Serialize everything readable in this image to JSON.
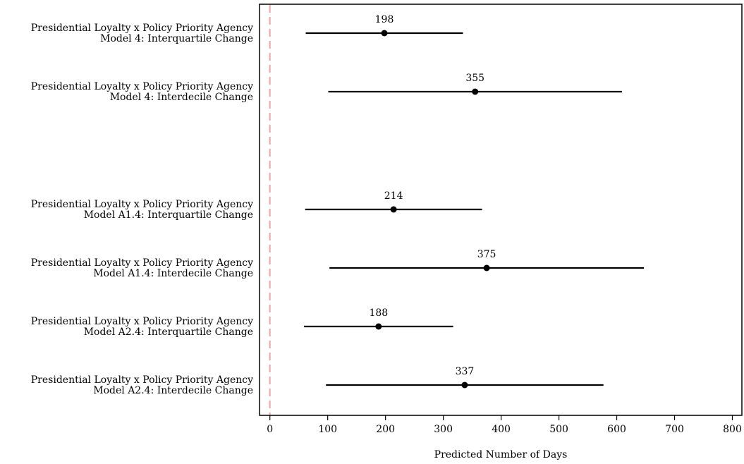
{
  "chart_data": {
    "type": "forest",
    "title": "",
    "xlabel": "Predicted Number of Days",
    "ylabel": "",
    "xlim": [
      -15,
      815
    ],
    "xticks": [
      0,
      100,
      200,
      300,
      400,
      500,
      600,
      700,
      800
    ],
    "reference_line": {
      "x": 0,
      "style": "dashed",
      "color": "#f4a3a3"
    },
    "grid": false,
    "point_color": "#000000",
    "rows": [
      {
        "line1": "Presidential Loyalty x Policy Priority Agency",
        "line2": "Model 4: Interquartile Change",
        "estimate": 198,
        "lower": 62,
        "upper": 334,
        "label": "198"
      },
      {
        "line1": "Presidential Loyalty x Policy Priority Agency",
        "line2": "Model 4: Interdecile Change",
        "estimate": 355,
        "lower": 101,
        "upper": 609,
        "label": "355"
      },
      {
        "line1": "Presidential Loyalty x Policy Priority Agency",
        "line2": "Model A1.4: Interquartile Change",
        "estimate": 214,
        "lower": 61,
        "upper": 367,
        "label": "214"
      },
      {
        "line1": "Presidential Loyalty x Policy Priority Agency",
        "line2": "Model A1.4: Interdecile Change",
        "estimate": 375,
        "lower": 103,
        "upper": 647,
        "label": "375"
      },
      {
        "line1": "Presidential Loyalty x Policy Priority Agency",
        "line2": "Model A2.4: Interquartile Change",
        "estimate": 188,
        "lower": 59,
        "upper": 317,
        "label": "188"
      },
      {
        "line1": "Presidential Loyalty x Policy Priority Agency",
        "line2": "Model A2.4: Interdecile Change",
        "estimate": 337,
        "lower": 97,
        "upper": 577,
        "label": "337"
      }
    ]
  }
}
